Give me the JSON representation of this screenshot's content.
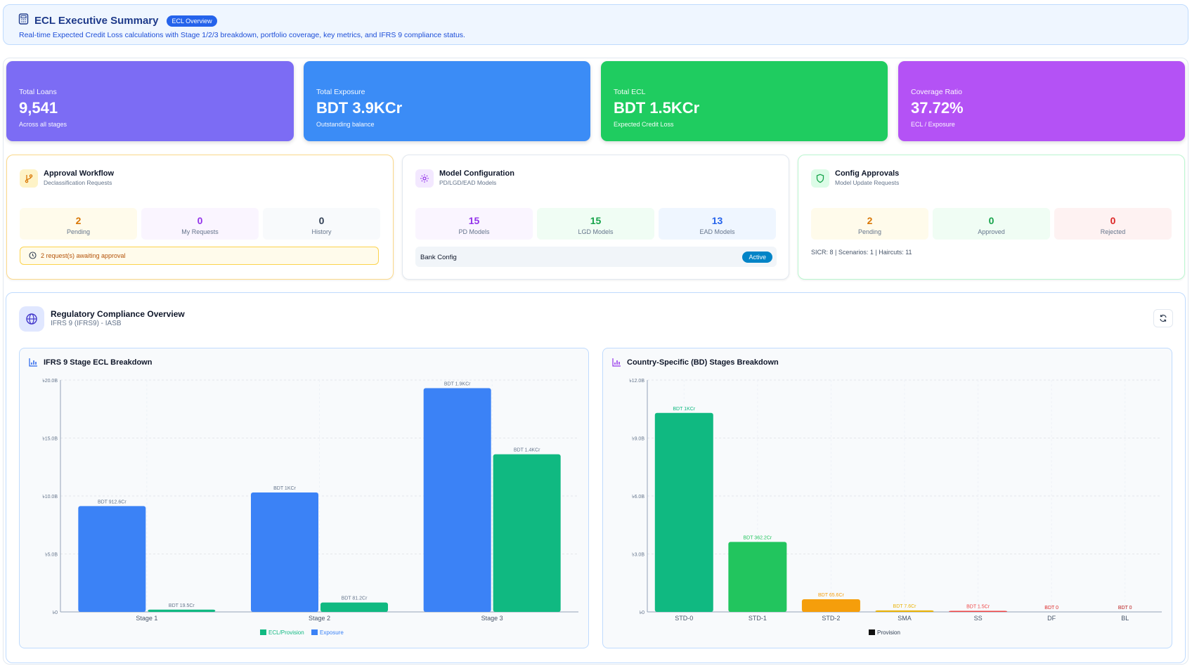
{
  "header": {
    "title": "ECL Executive Summary",
    "badge": "ECL Overview",
    "subtitle": "Real-time Expected Credit Loss calculations with Stage 1/2/3 breakdown, portfolio coverage, key metrics, and IFRS 9 compliance status."
  },
  "kpis": [
    {
      "label": "Total Loans",
      "value": "9,541",
      "caption": "Across all stages",
      "color": "#7c6cf4"
    },
    {
      "label": "Total Exposure",
      "value": "BDT 3.9KCr",
      "caption": "Outstanding balance",
      "color": "#3b8cf6"
    },
    {
      "label": "Total ECL",
      "value": "BDT 1.5KCr",
      "caption": "Expected Credit Loss",
      "color": "#1fcc60"
    },
    {
      "label": "Coverage Ratio",
      "value": "37.72%",
      "caption": "ECL / Exposure",
      "color": "#b452f5"
    }
  ],
  "approval": {
    "title": "Approval Workflow",
    "subtitle": "Declassification Requests",
    "stats": [
      {
        "value": "2",
        "label": "Pending"
      },
      {
        "value": "0",
        "label": "My Requests"
      },
      {
        "value": "0",
        "label": "History"
      }
    ],
    "alert": "2 request(s) awaiting approval"
  },
  "model": {
    "title": "Model Configuration",
    "subtitle": "PD/LGD/EAD Models",
    "stats": [
      {
        "value": "15",
        "label": "PD Models"
      },
      {
        "value": "15",
        "label": "LGD Models"
      },
      {
        "value": "13",
        "label": "EAD Models"
      }
    ],
    "bank_config": "Bank Config",
    "status": "Active"
  },
  "config": {
    "title": "Config Approvals",
    "subtitle": "Model Update Requests",
    "stats": [
      {
        "value": "2",
        "label": "Pending"
      },
      {
        "value": "0",
        "label": "Approved"
      },
      {
        "value": "0",
        "label": "Rejected"
      }
    ],
    "footnote": "SICR: 8 | Scenarios: 1 | Haircuts: 11"
  },
  "regulatory": {
    "title": "Regulatory Compliance Overview",
    "subtitle": "IFRS 9 (IFRS9) - IASB"
  },
  "chart_data": [
    {
      "type": "bar",
      "title": "IFRS 9 Stage ECL Breakdown",
      "categories": [
        "Stage 1",
        "Stage 2",
        "Stage 3"
      ],
      "series": [
        {
          "name": "Exposure",
          "color": "#3b82f6",
          "values": [
            9.126,
            10.3,
            19.3
          ],
          "labels": [
            "BDT 912.6Cr",
            "BDT 1KCr",
            "BDT 1.9KCr"
          ]
        },
        {
          "name": "ECL/Provision",
          "color": "#10b981",
          "values": [
            0.195,
            0.812,
            13.6
          ],
          "labels": [
            "BDT 19.5Cr",
            "BDT 81.2Cr",
            "BDT 1.4KCr"
          ]
        }
      ],
      "legend": [
        "ECL/Provision",
        "Exposure"
      ],
      "ylim": [
        0,
        20
      ],
      "yticks": [
        0,
        5,
        10,
        15,
        20
      ],
      "ytick_labels": [
        "৳0",
        "৳5.0B",
        "৳10.0B",
        "৳15.0B",
        "৳20.0B"
      ],
      "ylabel": "",
      "xlabel": ""
    },
    {
      "type": "bar",
      "title": "Country-Specific (BD) Stages Breakdown",
      "categories": [
        "STD-0",
        "STD-1",
        "STD-2",
        "SMA",
        "SS",
        "DF",
        "BL"
      ],
      "series": [
        {
          "name": "Provision",
          "values": [
            10.3,
            3.622,
            0.656,
            0.076,
            0.015,
            0,
            0
          ],
          "labels": [
            "BDT 1KCr",
            "BDT 362.2Cr",
            "BDT 65.6Cr",
            "BDT 7.6Cr",
            "BDT 1.5Cr",
            "BDT 0",
            "BDT 0"
          ],
          "colors": [
            "#10b981",
            "#22c55e",
            "#f59e0b",
            "#eab308",
            "#ef4444",
            "#dc2626",
            "#b91c1c"
          ]
        }
      ],
      "legend": [
        "Provision"
      ],
      "ylim": [
        0,
        12
      ],
      "yticks": [
        0,
        3,
        6,
        9,
        12
      ],
      "ytick_labels": [
        "৳0",
        "৳3.0B",
        "৳6.0B",
        "৳9.0B",
        "৳12.0B"
      ],
      "ylabel": "",
      "xlabel": ""
    }
  ]
}
